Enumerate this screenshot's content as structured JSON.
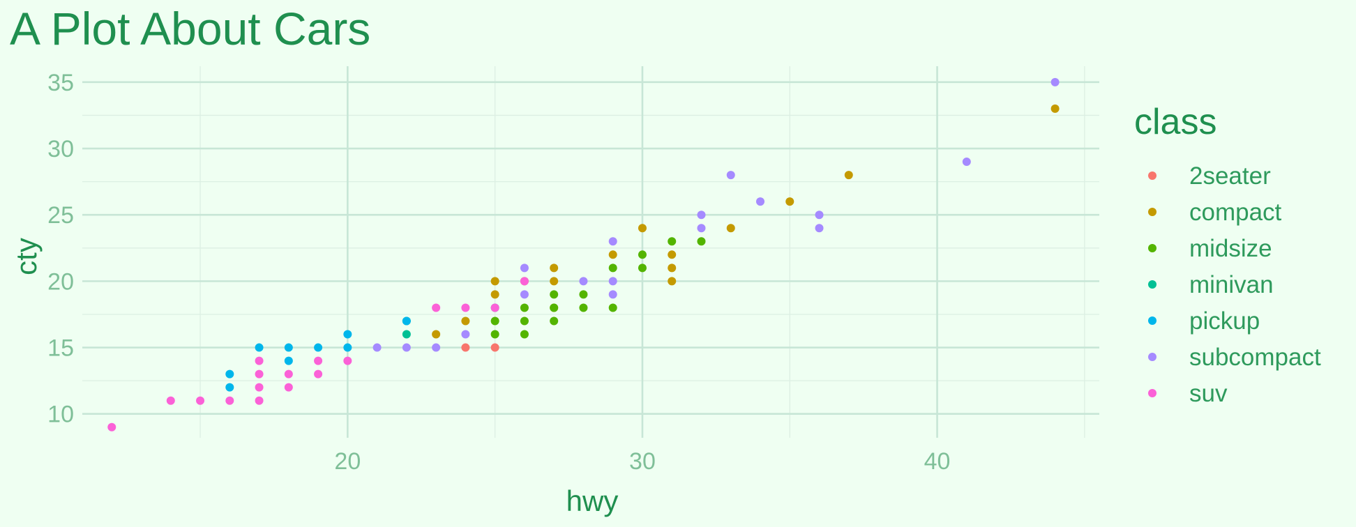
{
  "chart_data": {
    "type": "scatter",
    "title": "A Plot About Cars",
    "xlabel": "hwy",
    "ylabel": "cty",
    "xlim": [
      11,
      45.5
    ],
    "ylim": [
      8.2,
      36.2
    ],
    "xticks": [
      20,
      30,
      40
    ],
    "yticks": [
      10,
      15,
      20,
      25,
      30,
      35
    ],
    "grid": true,
    "legend": {
      "title": "class",
      "position": "right"
    },
    "series": [
      {
        "name": "2seater",
        "color": "#F8766D",
        "points": [
          [
            24,
            15
          ],
          [
            25,
            15
          ]
        ]
      },
      {
        "name": "compact",
        "color": "#C49A00",
        "points": [
          [
            23,
            16
          ],
          [
            24,
            17
          ],
          [
            25,
            19
          ],
          [
            25,
            20
          ],
          [
            26,
            20
          ],
          [
            27,
            18
          ],
          [
            27,
            20
          ],
          [
            27,
            21
          ],
          [
            29,
            22
          ],
          [
            30,
            24
          ],
          [
            31,
            20
          ],
          [
            31,
            21
          ],
          [
            31,
            22
          ],
          [
            33,
            24
          ],
          [
            35,
            26
          ],
          [
            37,
            28
          ],
          [
            44,
            33
          ]
        ]
      },
      {
        "name": "midsize",
        "color": "#53B400",
        "points": [
          [
            25,
            16
          ],
          [
            25,
            17
          ],
          [
            26,
            16
          ],
          [
            26,
            17
          ],
          [
            26,
            18
          ],
          [
            27,
            17
          ],
          [
            27,
            18
          ],
          [
            27,
            19
          ],
          [
            28,
            18
          ],
          [
            28,
            19
          ],
          [
            29,
            18
          ],
          [
            29,
            21
          ],
          [
            30,
            21
          ],
          [
            30,
            22
          ],
          [
            31,
            23
          ],
          [
            32,
            23
          ]
        ]
      },
      {
        "name": "minivan",
        "color": "#00C094",
        "points": [
          [
            22,
            16
          ],
          [
            22,
            17
          ],
          [
            25,
            18
          ]
        ]
      },
      {
        "name": "pickup",
        "color": "#00B6EB",
        "points": [
          [
            16,
            12
          ],
          [
            16,
            13
          ],
          [
            17,
            15
          ],
          [
            18,
            14
          ],
          [
            18,
            15
          ],
          [
            19,
            15
          ],
          [
            20,
            15
          ],
          [
            20,
            16
          ],
          [
            22,
            17
          ]
        ]
      },
      {
        "name": "subcompact",
        "color": "#A58AFF",
        "points": [
          [
            21,
            15
          ],
          [
            22,
            15
          ],
          [
            23,
            15
          ],
          [
            24,
            16
          ],
          [
            26,
            19
          ],
          [
            26,
            21
          ],
          [
            28,
            20
          ],
          [
            29,
            19
          ],
          [
            29,
            20
          ],
          [
            29,
            23
          ],
          [
            32,
            24
          ],
          [
            32,
            25
          ],
          [
            33,
            28
          ],
          [
            34,
            26
          ],
          [
            36,
            24
          ],
          [
            36,
            25
          ],
          [
            41,
            29
          ],
          [
            44,
            35
          ]
        ]
      },
      {
        "name": "suv",
        "color": "#FB61D7",
        "points": [
          [
            12,
            9
          ],
          [
            14,
            11
          ],
          [
            15,
            11
          ],
          [
            16,
            11
          ],
          [
            17,
            11
          ],
          [
            17,
            12
          ],
          [
            17,
            13
          ],
          [
            17,
            14
          ],
          [
            18,
            12
          ],
          [
            18,
            13
          ],
          [
            19,
            13
          ],
          [
            19,
            14
          ],
          [
            20,
            14
          ],
          [
            23,
            18
          ],
          [
            24,
            18
          ],
          [
            25,
            18
          ],
          [
            26,
            20
          ]
        ]
      }
    ]
  }
}
